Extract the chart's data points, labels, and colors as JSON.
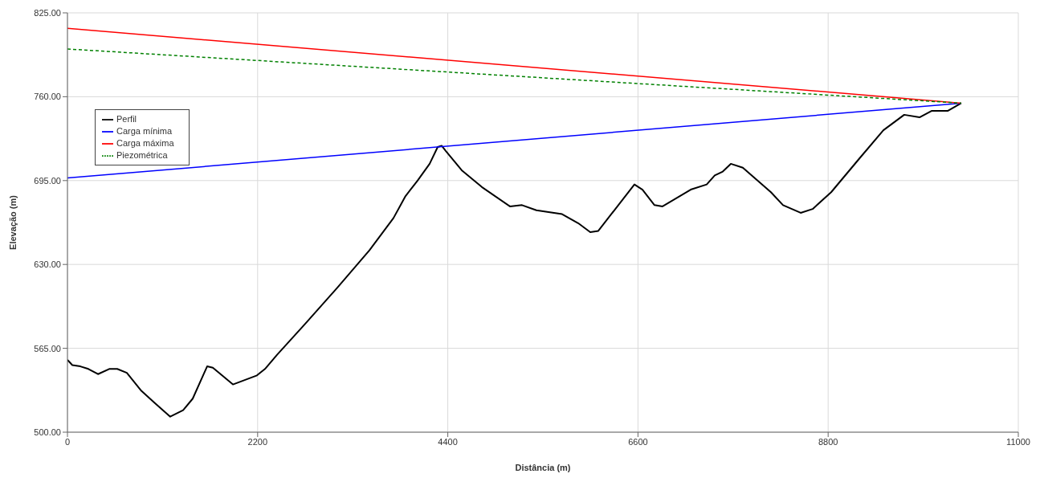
{
  "chart_data": {
    "type": "line",
    "xlabel": "Distância (m)",
    "ylabel": "Elevação (m)",
    "xlim": [
      0,
      11000
    ],
    "xticks": [
      0,
      2200,
      4400,
      6600,
      8800,
      11000
    ],
    "ylim": [
      500,
      825
    ],
    "yticks": [
      {
        "value": 500,
        "label": "500.00"
      },
      {
        "value": 565,
        "label": "565.00"
      },
      {
        "value": 630,
        "label": "630.00"
      },
      {
        "value": 695,
        "label": "695.00"
      },
      {
        "value": 760,
        "label": "760.00"
      },
      {
        "value": 825,
        "label": "825.00"
      }
    ],
    "grid": true,
    "legend": "top left",
    "marker": "none",
    "series": [
      {
        "name": "Perfil",
        "color": "#000000",
        "x": [
          0,
          56,
          149,
          242,
          353,
          483,
          576,
          687,
          855,
          1003,
          1189,
          1338,
          1449,
          1616,
          1682,
          1914,
          2192,
          2285,
          2425,
          2750,
          3122,
          3493,
          3772,
          3911,
          4050,
          4190,
          4283,
          4329,
          4376,
          4561,
          4794,
          5119,
          5258,
          5425,
          5722,
          5908,
          6048,
          6141,
          6373,
          6559,
          6652,
          6791,
          6884,
          7210,
          7395,
          7488,
          7581,
          7674,
          7813,
          8138,
          8278,
          8482,
          8621,
          8835,
          9160,
          9439,
          9680,
          9857,
          9996,
          10182,
          10340
        ],
        "values": [
          556,
          552,
          551,
          549,
          545,
          549,
          549,
          546,
          532,
          523,
          512,
          517,
          526,
          551,
          550,
          537,
          544,
          549,
          560,
          584,
          612,
          641,
          666,
          683,
          695,
          708,
          721,
          722,
          718,
          703,
          690,
          675,
          676,
          672,
          669,
          662,
          655,
          656,
          676,
          692,
          688,
          676,
          675,
          688,
          692,
          699,
          702,
          708,
          705,
          686,
          676,
          670,
          673,
          686,
          712,
          734,
          746,
          744,
          749,
          749,
          755
        ]
      },
      {
        "name": "Carga mínima",
        "color": "#0000ff",
        "x": [
          0,
          10340
        ],
        "values": [
          697,
          755
        ]
      },
      {
        "name": "Carga máxima",
        "color": "#ff0000",
        "x": [
          0,
          10340
        ],
        "values": [
          813,
          755
        ]
      },
      {
        "name": "Piezométrica",
        "color": "#008000",
        "x": [
          0,
          10340
        ],
        "values": [
          797,
          755
        ],
        "line_style": "dashed"
      }
    ]
  }
}
